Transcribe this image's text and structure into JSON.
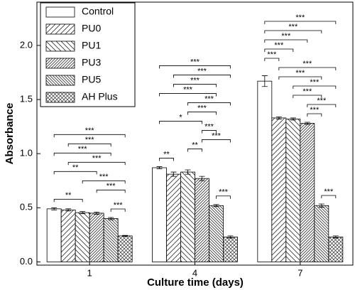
{
  "chart_data": {
    "type": "bar",
    "x_label": "Culture time (days)",
    "y_label": "Absorbance",
    "categories": [
      "1",
      "4",
      "7"
    ],
    "series": [
      {
        "name": "Control",
        "color": "#ffffff",
        "hatch": "none",
        "values": [
          0.49,
          0.87,
          1.67
        ],
        "errors": [
          0.01,
          0.01,
          0.05
        ]
      },
      {
        "name": "PU0",
        "color": "#ffffff",
        "hatch": "/",
        "values": [
          0.48,
          0.81,
          1.33
        ],
        "errors": [
          0.01,
          0.02,
          0.01
        ]
      },
      {
        "name": "PU1",
        "color": "#ffffff",
        "hatch": "\\",
        "values": [
          0.455,
          0.83,
          1.32
        ],
        "errors": [
          0.01,
          0.02,
          0.01
        ]
      },
      {
        "name": "PU3",
        "color": "#ffffff",
        "hatch": "//",
        "values": [
          0.45,
          0.77,
          1.28
        ],
        "errors": [
          0.01,
          0.02,
          0.01
        ]
      },
      {
        "name": "PU5",
        "color": "#ffffff",
        "hatch": "\\\\",
        "values": [
          0.4,
          0.52,
          0.52
        ],
        "errors": [
          0.01,
          0.01,
          0.015
        ]
      },
      {
        "name": "AH Plus",
        "color": "#ffffff",
        "hatch": "x",
        "values": [
          0.24,
          0.23,
          0.23
        ],
        "errors": [
          0.005,
          0.01,
          0.01
        ]
      }
    ],
    "significance": [
      [
        {
          "pair": [
            "PU5",
            "AH Plus"
          ],
          "label": "***"
        },
        {
          "pair": [
            "Control",
            "PU1"
          ],
          "label": "**"
        },
        {
          "pair": [
            "PU3",
            "AH Plus"
          ],
          "label": "***"
        },
        {
          "pair": [
            "PU1",
            "AH Plus"
          ],
          "label": "***"
        },
        {
          "pair": [
            "Control",
            "PU3"
          ],
          "label": "**"
        },
        {
          "pair": [
            "PU0",
            "AH Plus"
          ],
          "label": "***"
        },
        {
          "pair": [
            "Control",
            "PU5"
          ],
          "label": "***"
        },
        {
          "pair": [
            "PU0",
            "PU5"
          ],
          "label": "***"
        },
        {
          "pair": [
            "Control",
            "AH Plus"
          ],
          "label": "***"
        }
      ],
      [
        {
          "pair": [
            "PU5",
            "AH Plus"
          ],
          "label": "***"
        },
        {
          "pair": [
            "Control",
            "PU0"
          ],
          "label": "**"
        },
        {
          "pair": [
            "PU1",
            "PU3"
          ],
          "label": "**"
        },
        {
          "pair": [
            "PU3",
            "AH Plus"
          ],
          "label": "***"
        },
        {
          "pair": [
            "PU3",
            "PU5"
          ],
          "label": "***"
        },
        {
          "pair": [
            "Control",
            "PU3"
          ],
          "label": "*"
        },
        {
          "pair": [
            "PU1",
            "PU5"
          ],
          "label": "***"
        },
        {
          "pair": [
            "PU1",
            "AH Plus"
          ],
          "label": "***"
        },
        {
          "pair": [
            "Control",
            "PU5"
          ],
          "label": "***"
        },
        {
          "pair": [
            "PU0",
            "PU5"
          ],
          "label": "***"
        },
        {
          "pair": [
            "PU0",
            "AH Plus"
          ],
          "label": "***"
        },
        {
          "pair": [
            "Control",
            "AH Plus"
          ],
          "label": "***"
        }
      ],
      [
        {
          "pair": [
            "PU5",
            "AH Plus"
          ],
          "label": "***"
        },
        {
          "pair": [
            "PU3",
            "PU5"
          ],
          "label": "***"
        },
        {
          "pair": [
            "PU3",
            "AH Plus"
          ],
          "label": "***"
        },
        {
          "pair": [
            "PU1",
            "PU5"
          ],
          "label": "***"
        },
        {
          "pair": [
            "PU1",
            "AH Plus"
          ],
          "label": "***"
        },
        {
          "pair": [
            "PU0",
            "PU5"
          ],
          "label": "***"
        },
        {
          "pair": [
            "PU0",
            "AH Plus"
          ],
          "label": "***"
        },
        {
          "pair": [
            "Control",
            "PU0"
          ],
          "label": "***"
        },
        {
          "pair": [
            "Control",
            "PU1"
          ],
          "label": "***"
        },
        {
          "pair": [
            "Control",
            "PU3"
          ],
          "label": "***"
        },
        {
          "pair": [
            "Control",
            "PU5"
          ],
          "label": "***"
        },
        {
          "pair": [
            "Control",
            "AH Plus"
          ],
          "label": "***"
        }
      ]
    ],
    "ylim": [
      -0.03,
      2.4
    ],
    "yticks": [
      {
        "value": 0,
        "label": "0.0"
      },
      {
        "value": 0.5,
        "label": "0.5"
      },
      {
        "value": 1,
        "label": "1.0"
      },
      {
        "value": 1.5,
        "label": "1.5"
      },
      {
        "value": 2,
        "label": "2.0"
      }
    ],
    "legend": "upper left"
  }
}
